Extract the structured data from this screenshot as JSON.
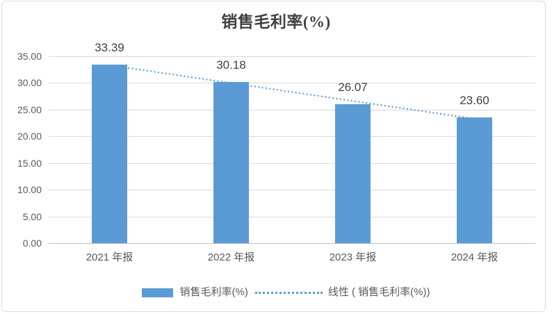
{
  "chart_data": {
    "type": "bar",
    "title": "销售毛利率(%)",
    "categories": [
      "2021 年报",
      "2022 年报",
      "2023 年报",
      "2024 年报"
    ],
    "series": [
      {
        "name": "销售毛利率(%)",
        "values": [
          33.39,
          30.18,
          26.07,
          23.6
        ]
      }
    ],
    "data_labels": [
      "33.39",
      "30.18",
      "26.07",
      "23.60"
    ],
    "trendline": {
      "type": "linear",
      "style": "dotted",
      "label": "线性 ( 销售毛利率(%))"
    },
    "y_axis": {
      "min": 0,
      "max": 35,
      "step": 5,
      "tick_labels": [
        "0.00",
        "5.00",
        "10.00",
        "15.00",
        "20.00",
        "25.00",
        "30.00",
        "35.00"
      ]
    },
    "x_axis": {
      "tick_labels": [
        "2021 年报",
        "2022 年报",
        "2023 年报",
        "2024 年报"
      ]
    },
    "grid": true,
    "legend_position": "bottom",
    "legend": {
      "series_label": "销售毛利率(%)",
      "trendline_label": "线性 ( 销售毛利率(%))"
    },
    "colors": {
      "bar": "#5B9BD5",
      "trendline": "#5B9BD5",
      "gridline": "#D9D9D9",
      "axis_line": "#BFBFBF",
      "tick_text": "#595959",
      "title_text": "#404040",
      "data_label_text": "#404040",
      "frame_border": "#D9D9D9",
      "background": "#FFFFFF"
    }
  }
}
